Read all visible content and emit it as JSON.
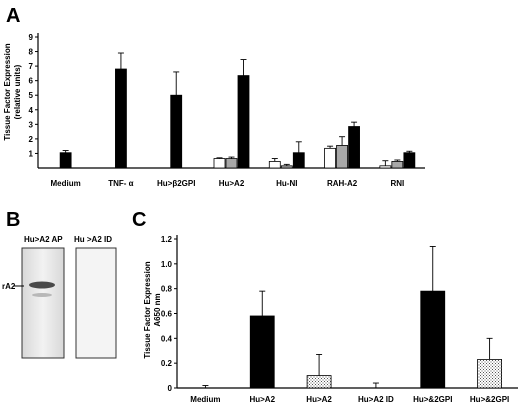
{
  "panels": {
    "a": "A",
    "b": "B",
    "c": "C"
  },
  "colors": {
    "black": "#000000",
    "gray": "#a8a8a8",
    "white": "#ffffff",
    "blot_band": "#4a4a4a"
  },
  "blot": {
    "lane1_label": "Hu>A2 AP",
    "lane2_label": "Hu >A2 ID",
    "band_label": "rA2"
  },
  "chart_data": [
    {
      "panel": "A",
      "type": "bar",
      "ylabel": [
        "Tissue Factor Expression",
        "(relative units)"
      ],
      "ylim": [
        0,
        9
      ],
      "yticks": [
        1,
        2,
        3,
        4,
        5,
        6,
        7,
        8,
        9
      ],
      "grid": false,
      "categories": [
        "Medium",
        "TNF- α",
        "Hu>β2GPI",
        "Hu>A2",
        "Hu-NI",
        "RAH-A2",
        "RNI"
      ],
      "bars": [
        {
          "cat": 0,
          "color": "black",
          "value": 1.05,
          "err": 0.15
        },
        {
          "cat": 1,
          "color": "black",
          "value": 6.8,
          "err": 1.1
        },
        {
          "cat": 2,
          "color": "black",
          "value": 5.0,
          "err": 1.6
        },
        {
          "cat": 3,
          "color": "white",
          "value": 0.65,
          "err": 0.05
        },
        {
          "cat": 3,
          "color": "gray",
          "value": 0.65,
          "err": 0.1
        },
        {
          "cat": 3,
          "color": "black",
          "value": 6.35,
          "err": 1.1
        },
        {
          "cat": 4,
          "color": "white",
          "value": 0.45,
          "err": 0.2
        },
        {
          "cat": 4,
          "color": "gray",
          "value": 0.15,
          "err": 0.1
        },
        {
          "cat": 4,
          "color": "black",
          "value": 1.05,
          "err": 0.75
        },
        {
          "cat": 5,
          "color": "white",
          "value": 1.35,
          "err": 0.15
        },
        {
          "cat": 5,
          "color": "gray",
          "value": 1.55,
          "err": 0.6
        },
        {
          "cat": 5,
          "color": "black",
          "value": 2.85,
          "err": 0.3
        },
        {
          "cat": 6,
          "color": "white",
          "value": 0.15,
          "err": 0.35
        },
        {
          "cat": 6,
          "color": "gray",
          "value": 0.45,
          "err": 0.1
        },
        {
          "cat": 6,
          "color": "black",
          "value": 1.05,
          "err": 0.1
        }
      ]
    },
    {
      "panel": "C",
      "type": "bar",
      "ylabel": [
        "Tissue Factor Expression",
        "A650 nm"
      ],
      "ylim": [
        0,
        1.2
      ],
      "yticks": [
        "0",
        "0.2",
        "0.4",
        "0.6",
        "0.8",
        "1.0",
        "1.2"
      ],
      "grid": false,
      "categories": [
        "Medium",
        "Hu>A2",
        "Hu>A2",
        "Hu>A2 ID",
        "Hu>&2GPI",
        "Hu>&2GPI"
      ],
      "bars": [
        {
          "cat": 0,
          "color": "black",
          "value": 0.0,
          "err": 0.02
        },
        {
          "cat": 1,
          "color": "black",
          "value": 0.58,
          "err": 0.2
        },
        {
          "cat": 2,
          "color": "dotted",
          "value": 0.1,
          "err": 0.17
        },
        {
          "cat": 3,
          "color": "black",
          "value": 0.0,
          "err": 0.04
        },
        {
          "cat": 4,
          "color": "black",
          "value": 0.78,
          "err": 0.36
        },
        {
          "cat": 5,
          "color": "dotted",
          "value": 0.23,
          "err": 0.17
        }
      ]
    }
  ]
}
